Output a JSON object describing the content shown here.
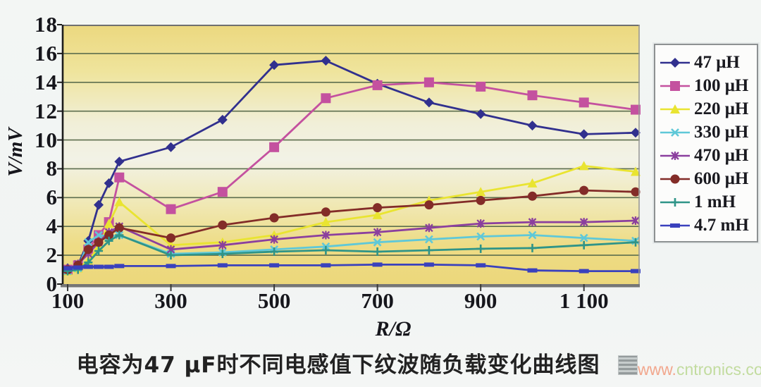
{
  "figure": {
    "caption": "电容为47 μF时不同电感值下纹波随负载变化曲线图",
    "watermark": {
      "prefix": "www.",
      "rest": "cntronics.com"
    }
  },
  "chart_data": {
    "type": "line",
    "title": "",
    "xlabel": "R/Ω",
    "ylabel": "V/mV",
    "x_min": 100,
    "x_max": 1200,
    "y_min": 0,
    "y_max": 18,
    "grid": true,
    "legend_position": "right",
    "x_ticks": [
      {
        "value": 100,
        "label": "100"
      },
      {
        "value": 300,
        "label": "300"
      },
      {
        "value": 500,
        "label": "500"
      },
      {
        "value": 700,
        "label": "700"
      },
      {
        "value": 900,
        "label": "900"
      },
      {
        "value": 1100,
        "label": "1 100"
      }
    ],
    "y_ticks": [
      {
        "value": 0,
        "label": "0"
      },
      {
        "value": 2,
        "label": "2"
      },
      {
        "value": 4,
        "label": "4"
      },
      {
        "value": 6,
        "label": "6"
      },
      {
        "value": 8,
        "label": "8"
      },
      {
        "value": 10,
        "label": "10"
      },
      {
        "value": 12,
        "label": "12"
      },
      {
        "value": 14,
        "label": "14"
      },
      {
        "value": 16,
        "label": "16"
      },
      {
        "value": 18,
        "label": "18"
      }
    ],
    "x": [
      100,
      120,
      140,
      160,
      180,
      200,
      300,
      400,
      500,
      600,
      700,
      800,
      900,
      1000,
      1100,
      1200
    ],
    "series": [
      {
        "name": "47 μH",
        "color": "#31308e",
        "marker": "diamond",
        "values": [
          1.1,
          1.3,
          3.0,
          5.5,
          7.0,
          8.5,
          9.5,
          11.4,
          15.2,
          15.5,
          13.9,
          12.6,
          11.8,
          11.0,
          10.4,
          10.5
        ]
      },
      {
        "name": "100 μH",
        "color": "#c4519f",
        "marker": "square",
        "values": [
          1.0,
          1.3,
          2.4,
          3.4,
          4.3,
          7.4,
          5.2,
          6.4,
          9.5,
          12.9,
          13.8,
          14.0,
          13.7,
          13.1,
          12.6,
          12.1
        ]
      },
      {
        "name": "220 μH",
        "color": "#e9e431",
        "marker": "triangle",
        "values": [
          0.9,
          1.1,
          1.6,
          2.6,
          4.2,
          5.7,
          2.7,
          2.9,
          3.4,
          4.3,
          4.8,
          5.8,
          6.4,
          7.0,
          8.2,
          7.8
        ]
      },
      {
        "name": "330 μH",
        "color": "#5fc8d8",
        "marker": "x",
        "values": [
          0.9,
          1.1,
          2.9,
          3.4,
          3.3,
          3.4,
          2.1,
          2.2,
          2.4,
          2.6,
          2.9,
          3.1,
          3.3,
          3.4,
          3.2,
          3.0
        ]
      },
      {
        "name": "470 μH",
        "color": "#8b3f9e",
        "marker": "star",
        "values": [
          1.0,
          1.4,
          2.1,
          2.9,
          3.6,
          4.0,
          2.4,
          2.7,
          3.1,
          3.4,
          3.6,
          3.9,
          4.2,
          4.3,
          4.3,
          4.4
        ]
      },
      {
        "name": "600 μH",
        "color": "#832c28",
        "marker": "circle",
        "values": [
          1.0,
          1.3,
          2.4,
          2.9,
          3.4,
          3.9,
          3.2,
          4.1,
          4.6,
          5.0,
          5.3,
          5.5,
          5.8,
          6.1,
          6.5,
          6.4
        ]
      },
      {
        "name": "1 mH",
        "color": "#2f9488",
        "marker": "plus",
        "values": [
          0.9,
          1.0,
          1.5,
          2.3,
          3.0,
          3.4,
          2.0,
          2.1,
          2.25,
          2.35,
          2.25,
          2.35,
          2.45,
          2.5,
          2.7,
          2.9
        ]
      },
      {
        "name": "4.7 mH",
        "color": "#3a41bd",
        "marker": "dash",
        "values": [
          1.1,
          1.15,
          1.2,
          1.2,
          1.2,
          1.25,
          1.25,
          1.3,
          1.3,
          1.3,
          1.35,
          1.35,
          1.3,
          0.95,
          0.9,
          0.9
        ]
      }
    ]
  }
}
